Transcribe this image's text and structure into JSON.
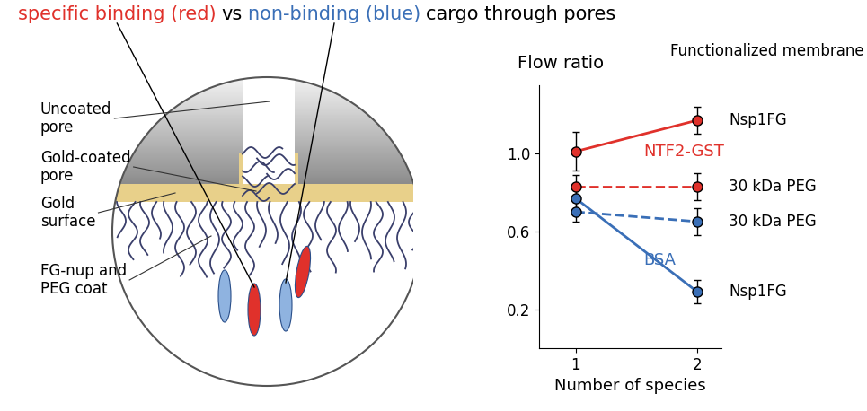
{
  "header": [
    {
      "text": "specific binding (red)",
      "color": "#e0312b"
    },
    {
      "text": "vs",
      "color": "#000000"
    },
    {
      "text": "non-binding (blue)",
      "color": "#3a6fb7"
    },
    {
      "text": "cargo through pores",
      "color": "#000000"
    }
  ],
  "diagram": {
    "labels": [
      "Uncoated\npore",
      "Gold-coated\npore",
      "Gold\nsurface",
      "FG-nup and\nPEG coat"
    ]
  },
  "chart_data": {
    "type": "line",
    "title": "Flow ratio",
    "x_label": "Number of species",
    "membrane_header": "Functionalized membrane",
    "x": [
      1,
      2
    ],
    "xlim": [
      0.7,
      2.2
    ],
    "xticks": [
      1,
      2
    ],
    "ylim": [
      0.0,
      1.35
    ],
    "yticks": [
      {
        "value": 0.2,
        "label": "0.2"
      },
      {
        "value": 0.6,
        "label": "0.6"
      },
      {
        "value": 1.0,
        "label": "1.0"
      }
    ],
    "series": [
      {
        "name": "NTF2-GST",
        "color": "#e0312b",
        "marker": "o",
        "lines": [
          {
            "membrane": "Nsp1FG",
            "line_style": "solid",
            "values": [
              1.01,
              1.17
            ],
            "errors": [
              0.1,
              0.07
            ]
          },
          {
            "membrane": "30 kDa PEG",
            "line_style": "dashed",
            "values": [
              0.83,
              0.83
            ],
            "errors": [
              0.06,
              0.07
            ]
          }
        ]
      },
      {
        "name": "BSA",
        "color": "#3a6fb7",
        "marker": "o",
        "lines": [
          {
            "membrane": "30 kDa PEG",
            "line_style": "dashed",
            "values": [
              0.7,
              0.65
            ],
            "errors": [
              0.05,
              0.07
            ]
          },
          {
            "membrane": "Nsp1FG",
            "line_style": "solid",
            "values": [
              0.77,
              0.29
            ],
            "errors": [
              0.06,
              0.06
            ]
          }
        ]
      }
    ]
  }
}
